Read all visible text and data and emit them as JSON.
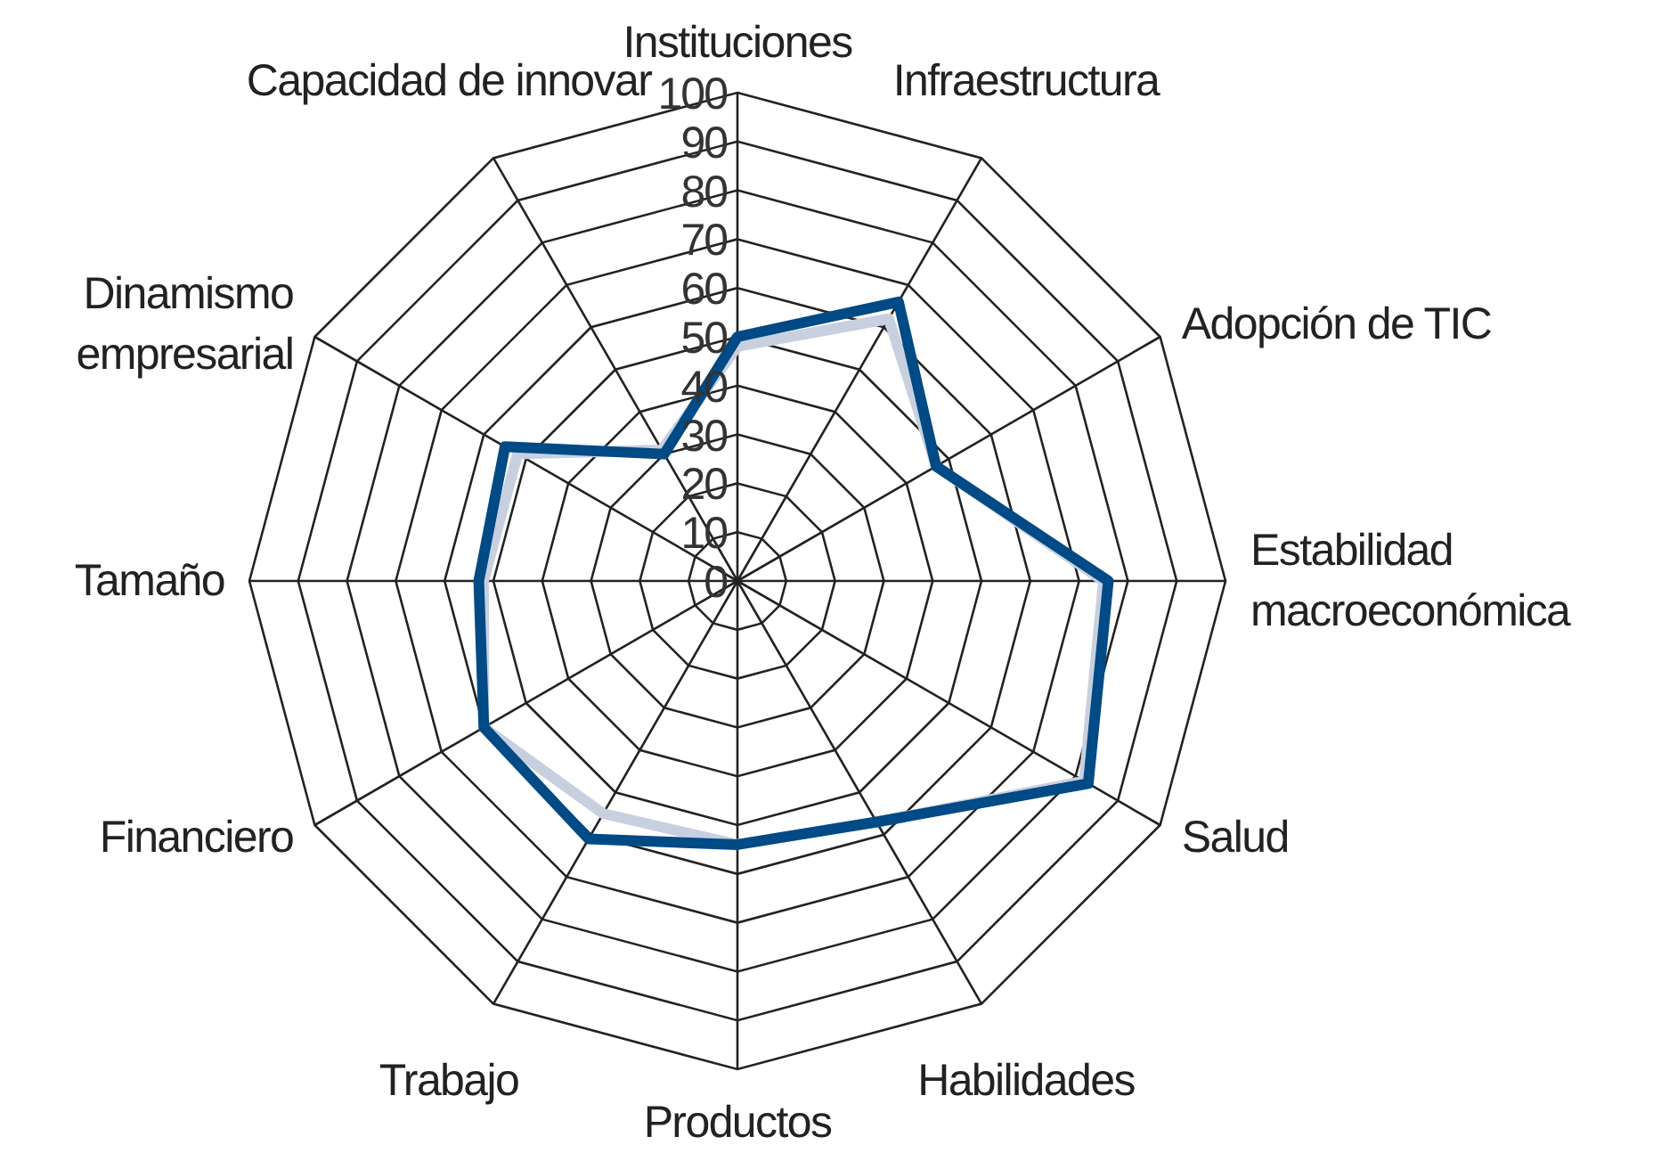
{
  "chart_data": {
    "type": "radar",
    "categories": [
      "Instituciones",
      "Infraestructura",
      "Adopción de TIC",
      "Estabilidad macroeconómica",
      "Salud",
      "Habilidades",
      "Productos",
      "Trabajo",
      "Financiero",
      "Tamaño",
      "Dinamismo empresarial",
      "Capacidad de innovar"
    ],
    "ylim": [
      0,
      100
    ],
    "yticks": [
      0,
      10,
      20,
      30,
      40,
      50,
      60,
      70,
      80,
      90,
      100
    ],
    "series": [
      {
        "color": "#c8d0e0",
        "values": [
          48,
          62,
          47,
          75,
          82,
          57,
          54,
          55,
          60,
          52,
          52,
          31
        ]
      },
      {
        "color": "#004a85",
        "values": [
          50,
          66,
          47,
          76,
          83,
          57,
          54,
          61,
          60,
          53,
          55,
          30
        ]
      }
    ]
  }
}
